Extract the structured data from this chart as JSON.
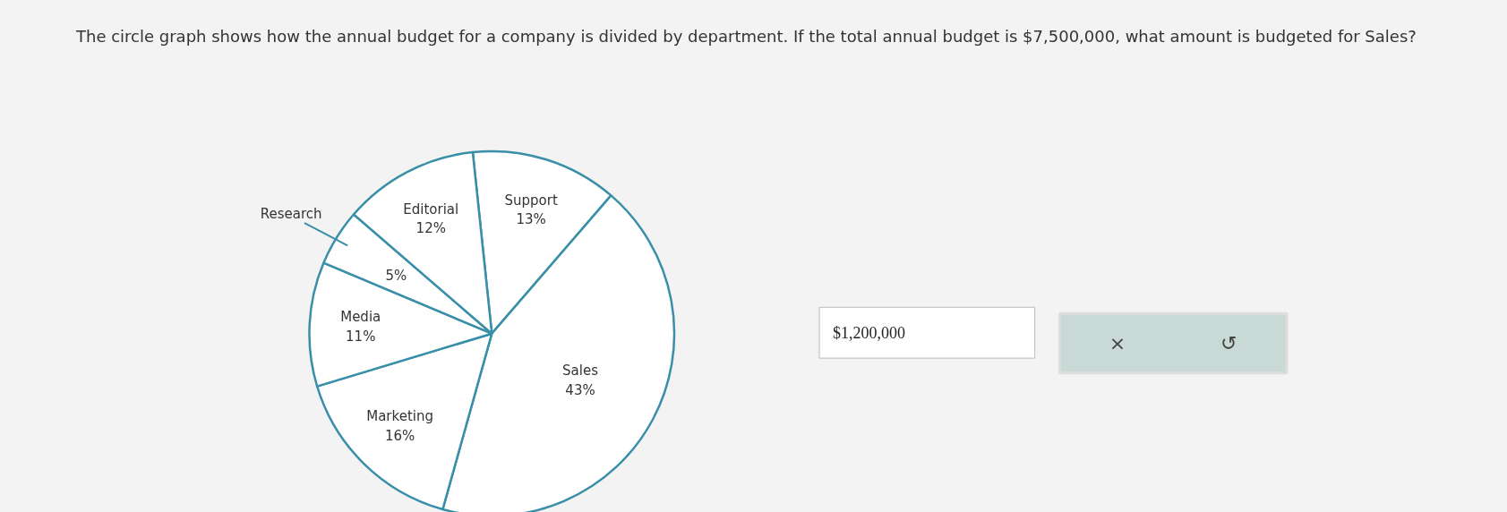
{
  "chart_data": {
    "type": "pie",
    "title": "The circle graph shows how the annual budget for a company is divided by department. If the total annual budget is $7,500,000, what amount is budgeted for Sales?",
    "categories": [
      "Support",
      "Sales",
      "Marketing",
      "Media",
      "Research",
      "Editorial"
    ],
    "values": [
      13,
      43,
      16,
      11,
      5,
      12
    ],
    "value_labels": [
      "13%",
      "43%",
      "16%",
      "11%",
      "5%",
      "12%"
    ],
    "colors": [
      "#ffffff",
      "#ffffff",
      "#ffffff",
      "#ffffff",
      "#ffffff",
      "#ffffff"
    ],
    "annotations": [
      "$1,200,000",
      "×",
      "↺"
    ]
  }
}
